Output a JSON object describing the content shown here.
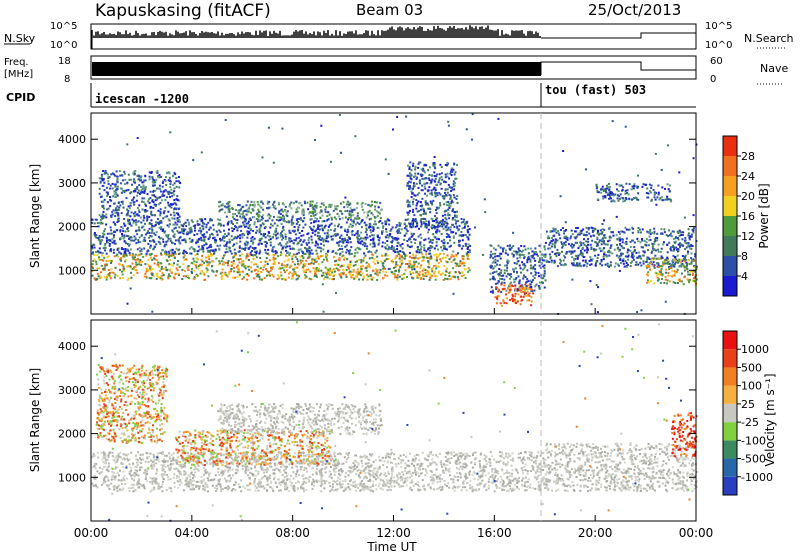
{
  "header": {
    "station": "Kapuskasing (fitACF)",
    "beam": "Beam 03",
    "date": "25/Oct/2013"
  },
  "panels": {
    "nsky_label": "N.Sky",
    "nsearch_label": "N.Search",
    "freq_label_line1": "Freq.",
    "freq_label_line2": "[MHz]",
    "nave_label": "Nave",
    "cpid_label": "CPID",
    "nsky_ticks": [
      "10^5",
      "10^0"
    ],
    "nsearch_ticks": [
      "10^5",
      "10^0"
    ],
    "freq_ticks": [
      "18",
      "8"
    ],
    "nave_ticks": [
      "60",
      "0"
    ],
    "cpid_segments": [
      {
        "label": "icescan -1200",
        "start_hour": 0.0,
        "end_hour": 18.0
      },
      {
        "label": "tou (fast) 503",
        "start_hour": 18.0,
        "end_hour": 24.0
      }
    ]
  },
  "chart_data": [
    {
      "type": "heatmap",
      "title": "",
      "ylabel": "Slant Range [km]",
      "xlabel": "",
      "x_range_hours": [
        0,
        24
      ],
      "ylim": [
        0,
        4600
      ],
      "yticks": [
        "1000",
        "2000",
        "3000",
        "4000"
      ],
      "colorbar": {
        "label": "Power [dB]",
        "ticks": [
          "4",
          "8",
          "12",
          "16",
          "20",
          "24",
          "28"
        ],
        "colors": [
          "#1a1ad0",
          "#2d4fa8",
          "#3f7a5a",
          "#4f9a3a",
          "#f0d020",
          "#f5a020",
          "#f07020",
          "#e83010"
        ]
      },
      "bands": [
        {
          "start_hour": 0.0,
          "end_hour": 15.0,
          "range_km": [
            800,
            1400
          ],
          "level": "orange"
        },
        {
          "start_hour": 0.0,
          "end_hour": 15.0,
          "range_km": [
            1400,
            2200
          ],
          "level": "blue"
        },
        {
          "start_hour": 0.3,
          "end_hour": 3.5,
          "range_km": [
            2200,
            3300
          ],
          "level": "blue"
        },
        {
          "start_hour": 5.0,
          "end_hour": 11.5,
          "range_km": [
            2200,
            2600
          ],
          "level": "green"
        },
        {
          "start_hour": 12.5,
          "end_hour": 14.5,
          "range_km": [
            2000,
            3500
          ],
          "level": "blue"
        },
        {
          "start_hour": 15.8,
          "end_hour": 18.0,
          "range_km": [
            500,
            1600
          ],
          "level": "blue"
        },
        {
          "start_hour": 16.0,
          "end_hour": 17.5,
          "range_km": [
            200,
            700
          ],
          "level": "red"
        },
        {
          "start_hour": 18.0,
          "end_hour": 24.0,
          "range_km": [
            1100,
            2000
          ],
          "level": "blue"
        },
        {
          "start_hour": 22.0,
          "end_hour": 24.0,
          "range_km": [
            700,
            1300
          ],
          "level": "orange"
        },
        {
          "start_hour": 20.0,
          "end_hour": 23.0,
          "range_km": [
            2600,
            3000
          ],
          "level": "blue"
        }
      ]
    },
    {
      "type": "heatmap",
      "title": "",
      "ylabel": "Slant Range [km]",
      "xlabel": "Time UT",
      "x_range_hours": [
        0,
        24
      ],
      "ylim": [
        0,
        4600
      ],
      "yticks": [
        "1000",
        "2000",
        "3000",
        "4000"
      ],
      "xticks": [
        "00:00",
        "04:00",
        "08:00",
        "12:00",
        "16:00",
        "20:00",
        "00:00"
      ],
      "colorbar": {
        "label": "Velocity [m s⁻¹]",
        "ticks": [
          "1000",
          "500",
          "100",
          "25",
          "-25",
          "-100",
          "-500",
          "-1000"
        ],
        "colors": [
          "#2840c0",
          "#2868a8",
          "#3c8a60",
          "#80d040",
          "#c8c8c0",
          "#f5b040",
          "#f08020",
          "#e84018",
          "#e81010"
        ]
      },
      "bands": [
        {
          "start_hour": 0.0,
          "end_hour": 18.0,
          "range_km": [
            700,
            1600
          ],
          "level": "gray"
        },
        {
          "start_hour": 3.3,
          "end_hour": 9.5,
          "range_km": [
            1300,
            2100
          ],
          "level": "orange"
        },
        {
          "start_hour": 0.2,
          "end_hour": 3.0,
          "range_km": [
            1800,
            3600
          ],
          "level": "orange"
        },
        {
          "start_hour": 5.0,
          "end_hour": 11.5,
          "range_km": [
            2000,
            2700
          ],
          "level": "gray"
        },
        {
          "start_hour": 18.0,
          "end_hour": 24.0,
          "range_km": [
            700,
            1800
          ],
          "level": "gray"
        },
        {
          "start_hour": 23.0,
          "end_hour": 24.0,
          "range_km": [
            1500,
            2500
          ],
          "level": "red"
        }
      ]
    }
  ]
}
